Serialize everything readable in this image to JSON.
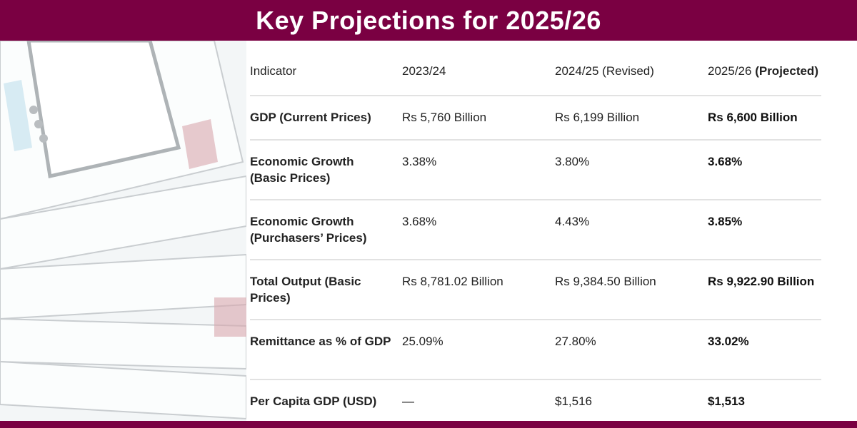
{
  "title": "Key Projections for 2025/26",
  "colors": {
    "brand": "#7a0042",
    "divider": "#e2e2e2"
  },
  "background_image": "banknotes-illustration",
  "table": {
    "headers": [
      "Indicator",
      "2023/24",
      "2024/25 (Revised)",
      "2025/26",
      "(Projected)"
    ],
    "rows": [
      {
        "indicator": "GDP (Current Prices)",
        "y2023": "Rs 5,760 Billion",
        "y2024": "Rs 6,199 Billion",
        "y2025": "Rs 6,600 Billion"
      },
      {
        "indicator": "Economic Growth (Basic Prices)",
        "y2023": "3.38%",
        "y2024": "3.80%",
        "y2025": "3.68%"
      },
      {
        "indicator": "Economic Growth (Purchasers’ Prices)",
        "y2023": "3.68%",
        "y2024": "4.43%",
        "y2025": "3.85%"
      },
      {
        "indicator": "Total Output (Basic Prices)",
        "y2023": "Rs 8,781.02 Billion",
        "y2024": "Rs 9,384.50 Billion",
        "y2025": "Rs 9,922.90 Billion"
      },
      {
        "indicator": "Remittance as % of GDP",
        "y2023": "25.09%",
        "y2024": "27.80%",
        "y2025": "33.02%"
      },
      {
        "indicator": "Per Capita GDP (USD)",
        "y2023": "—",
        "y2024": "$1,516",
        "y2025": "$1,513"
      }
    ]
  }
}
